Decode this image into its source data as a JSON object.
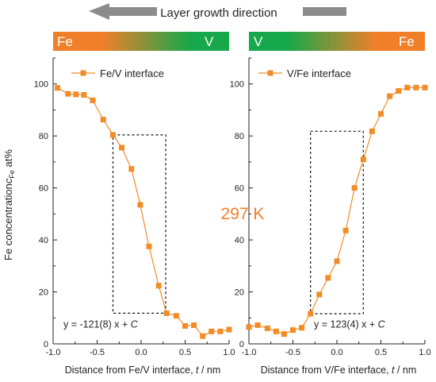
{
  "header": {
    "growth_label": "Layer growth direction",
    "left_bar": {
      "start": "Fe",
      "end": "V",
      "start_color": "#f07f2a",
      "end_color": "#16a84a"
    },
    "right_bar": {
      "start": "V",
      "end": "Fe",
      "start_color": "#16a84a",
      "end_color": "#f07f2a"
    }
  },
  "temperature_label": "297 K",
  "colors": {
    "series": "#f28c28",
    "bar_orange": "#f07f2a",
    "bar_green": "#16a84a",
    "arrow": "#8c8c8c",
    "temp_text": "#f07f2a"
  },
  "ylabel_main": "Fe concentration",
  "ylabel_italic": "c",
  "ylabel_sub": "Fe",
  "ylabel_unit": " at%",
  "chart_data": [
    {
      "type": "line",
      "legend": "Fe/V interface",
      "xlabel_prefix": "Distance from Fe/V interface, ",
      "xlabel_var": "t",
      "xlabel_unit": " / nm",
      "xlim": [
        -1.0,
        1.0
      ],
      "ylim": [
        0,
        110
      ],
      "xticks": [
        "-1.0",
        "-0.5",
        "0.0",
        "0.5",
        "1.0"
      ],
      "yticks": [
        "0",
        "20",
        "40",
        "60",
        "80",
        "100"
      ],
      "series": [
        {
          "x": [
            -0.95,
            -0.83,
            -0.74,
            -0.65,
            -0.55,
            -0.43,
            -0.32,
            -0.22,
            -0.11,
            -0.01,
            0.09,
            0.2,
            0.29,
            0.4,
            0.5,
            0.6,
            0.7,
            0.8,
            0.9,
            1.0
          ],
          "y": [
            98.5,
            96.2,
            96.0,
            95.8,
            93.7,
            86.3,
            80.4,
            75.5,
            67.3,
            53.5,
            37.5,
            22.4,
            11.8,
            10.8,
            6.9,
            7.2,
            3.0,
            4.8,
            4.8,
            5.5
          ]
        }
      ],
      "fit_equation": "y = -121(8) x + ",
      "fit_const": "C",
      "box": {
        "x0": -0.32,
        "x1": 0.28,
        "y0": 11.8,
        "y1": 80.4
      }
    },
    {
      "type": "line",
      "legend": "V/Fe interface",
      "xlabel_prefix": "Distance from V/Fe interface, ",
      "xlabel_var": "t",
      "xlabel_unit": " / nm",
      "xlim": [
        -1.0,
        1.0
      ],
      "ylim": [
        0,
        110
      ],
      "xticks": [
        "-1.0",
        "-0.5",
        "0.0",
        "0.5",
        "1.0"
      ],
      "yticks": [
        "0",
        "20",
        "40",
        "60",
        "80",
        "100"
      ],
      "series": [
        {
          "x": [
            -1.0,
            -0.9,
            -0.79,
            -0.69,
            -0.6,
            -0.5,
            -0.4,
            -0.3,
            -0.2,
            -0.1,
            0.0,
            0.1,
            0.2,
            0.3,
            0.4,
            0.5,
            0.6,
            0.7,
            0.8,
            0.9,
            1.0
          ],
          "y": [
            6.5,
            7.2,
            6.0,
            4.8,
            3.8,
            5.3,
            6.2,
            11.6,
            19.0,
            25.4,
            31.8,
            43.6,
            60.0,
            71.0,
            81.8,
            88.5,
            95.3,
            97.3,
            98.6,
            98.6,
            98.6
          ]
        }
      ],
      "fit_equation": "y = 123(4) x + ",
      "fit_const": "C",
      "box": {
        "x0": -0.3,
        "x1": 0.3,
        "y0": 11.6,
        "y1": 81.8
      }
    }
  ]
}
